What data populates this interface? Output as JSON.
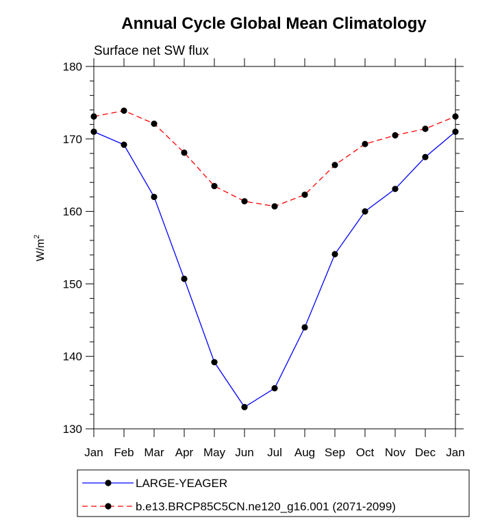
{
  "chart_data": {
    "type": "line",
    "title": "Annual Cycle Global Mean Climatology",
    "subtitle": "Surface net SW flux",
    "ylabel_base": "W/m",
    "ylabel_sup": "2",
    "xlabel": "",
    "categories": [
      "Jan",
      "Feb",
      "Mar",
      "Apr",
      "May",
      "Jun",
      "Jul",
      "Aug",
      "Sep",
      "Oct",
      "Nov",
      "Dec",
      "Jan"
    ],
    "ylim": [
      130,
      180
    ],
    "yticks": [
      130,
      140,
      150,
      160,
      170,
      180
    ],
    "grid": false,
    "legend_position": "bottom",
    "series": [
      {
        "name": "LARGE-YEAGER",
        "style": "solid",
        "color": "#0000ff",
        "values": [
          171.0,
          169.2,
          162.0,
          150.7,
          139.2,
          133.0,
          135.6,
          144.0,
          154.1,
          160.0,
          163.1,
          167.5,
          171.0
        ]
      },
      {
        "name": "b.e13.BRCP85C5CN.ne120_g16.001 (2071-2099)",
        "style": "dashed",
        "color": "#ff0000",
        "values": [
          173.1,
          173.9,
          172.1,
          168.1,
          163.5,
          161.4,
          160.7,
          162.3,
          166.4,
          169.3,
          170.5,
          171.4,
          173.1
        ]
      }
    ]
  }
}
